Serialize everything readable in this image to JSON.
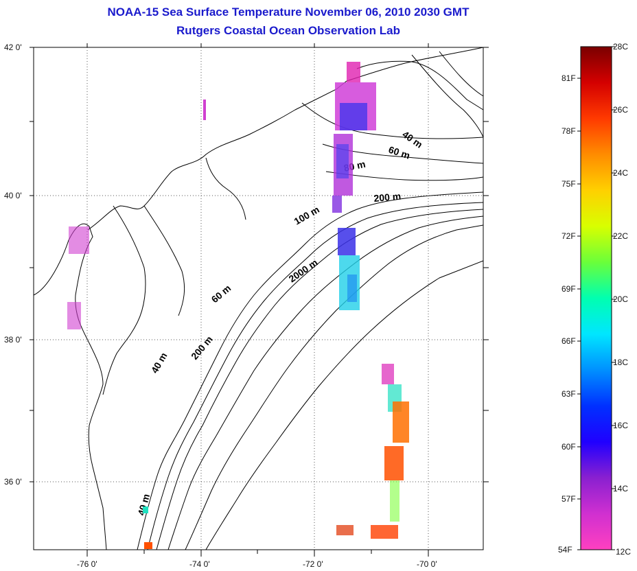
{
  "title": "NOAA-15 Sea Surface Temperature November 06, 2010 2030 GMT",
  "subtitle": "Rutgers Coastal Ocean Observation Lab",
  "lat_labels": [
    "42 0'",
    "40 0'",
    "38 0'",
    "36 0'"
  ],
  "lon_labels": [
    "-76 0'",
    "-74 0'",
    "-72 0'",
    "-70 0'"
  ],
  "contour_labels": [
    "40 m",
    "60 m",
    "80 m",
    "200 m",
    "100 m",
    "2000 m",
    "60 m",
    "40 m",
    "200 m",
    "40 m"
  ],
  "colorbar": {
    "celsius": [
      "28C",
      "26C",
      "24C",
      "22C",
      "20C",
      "18C",
      "16C",
      "14C",
      "12C"
    ],
    "fahrenheit": [
      "81F",
      "78F",
      "75F",
      "72F",
      "69F",
      "66F",
      "63F",
      "60F",
      "57F",
      "54F"
    ],
    "gradient_colors": [
      "#7a0000",
      "#d40000",
      "#ff3a00",
      "#ff8c00",
      "#ffd000",
      "#d8ff00",
      "#6aff3a",
      "#00ffb0",
      "#00e6ff",
      "#0090ff",
      "#0030ff",
      "#2000ff",
      "#8a20d0",
      "#d030d0",
      "#ff40c0"
    ]
  },
  "land_color": "#ffffff",
  "line_color": "#000000"
}
